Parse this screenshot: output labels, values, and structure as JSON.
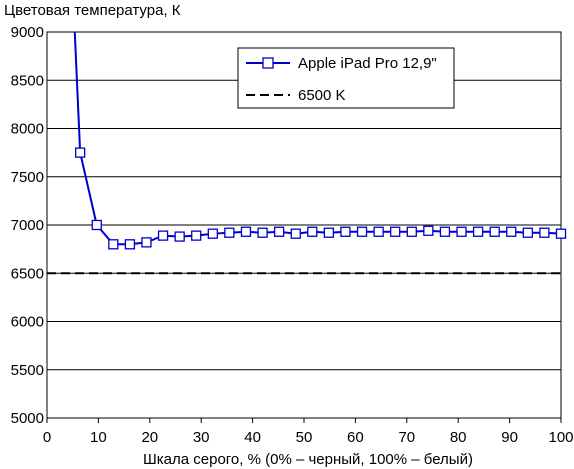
{
  "chart_data": {
    "type": "line",
    "title": "",
    "ylabel": "Цветовая температура, К",
    "xlabel": "Шкала серого, % (0% – черный, 100% – белый)",
    "xlim": [
      0,
      100
    ],
    "ylim": [
      5000,
      9000
    ],
    "xticks": [
      0,
      10,
      20,
      30,
      40,
      50,
      60,
      70,
      80,
      90,
      100
    ],
    "yticks": [
      5000,
      5500,
      6000,
      6500,
      7000,
      7500,
      8000,
      8500,
      9000
    ],
    "grid": true,
    "legend_position": "top-right",
    "series": [
      {
        "name": "Apple iPad Pro 12,9\"",
        "color": "#0000cc",
        "marker": "square",
        "x": [
          6.45,
          9.68,
          12.9,
          16.13,
          19.35,
          22.58,
          25.81,
          29.03,
          32.26,
          35.48,
          38.71,
          41.94,
          45.16,
          48.39,
          51.61,
          54.84,
          58.06,
          61.29,
          64.52,
          67.74,
          70.97,
          74.19,
          77.42,
          80.65,
          83.87,
          87.1,
          90.32,
          93.55,
          96.77,
          100
        ],
        "y": [
          7750,
          7000,
          6800,
          6800,
          6820,
          6890,
          6880,
          6890,
          6910,
          6920,
          6930,
          6920,
          6930,
          6910,
          6930,
          6920,
          6930,
          6930,
          6930,
          6930,
          6930,
          6940,
          6930,
          6930,
          6930,
          6930,
          6930,
          6920,
          6920,
          6910
        ],
        "offscale_start": {
          "x": 5.4,
          "y": 9000
        }
      },
      {
        "name": "6500 K",
        "color": "#000000",
        "style": "dashed",
        "value": 6500
      }
    ]
  }
}
